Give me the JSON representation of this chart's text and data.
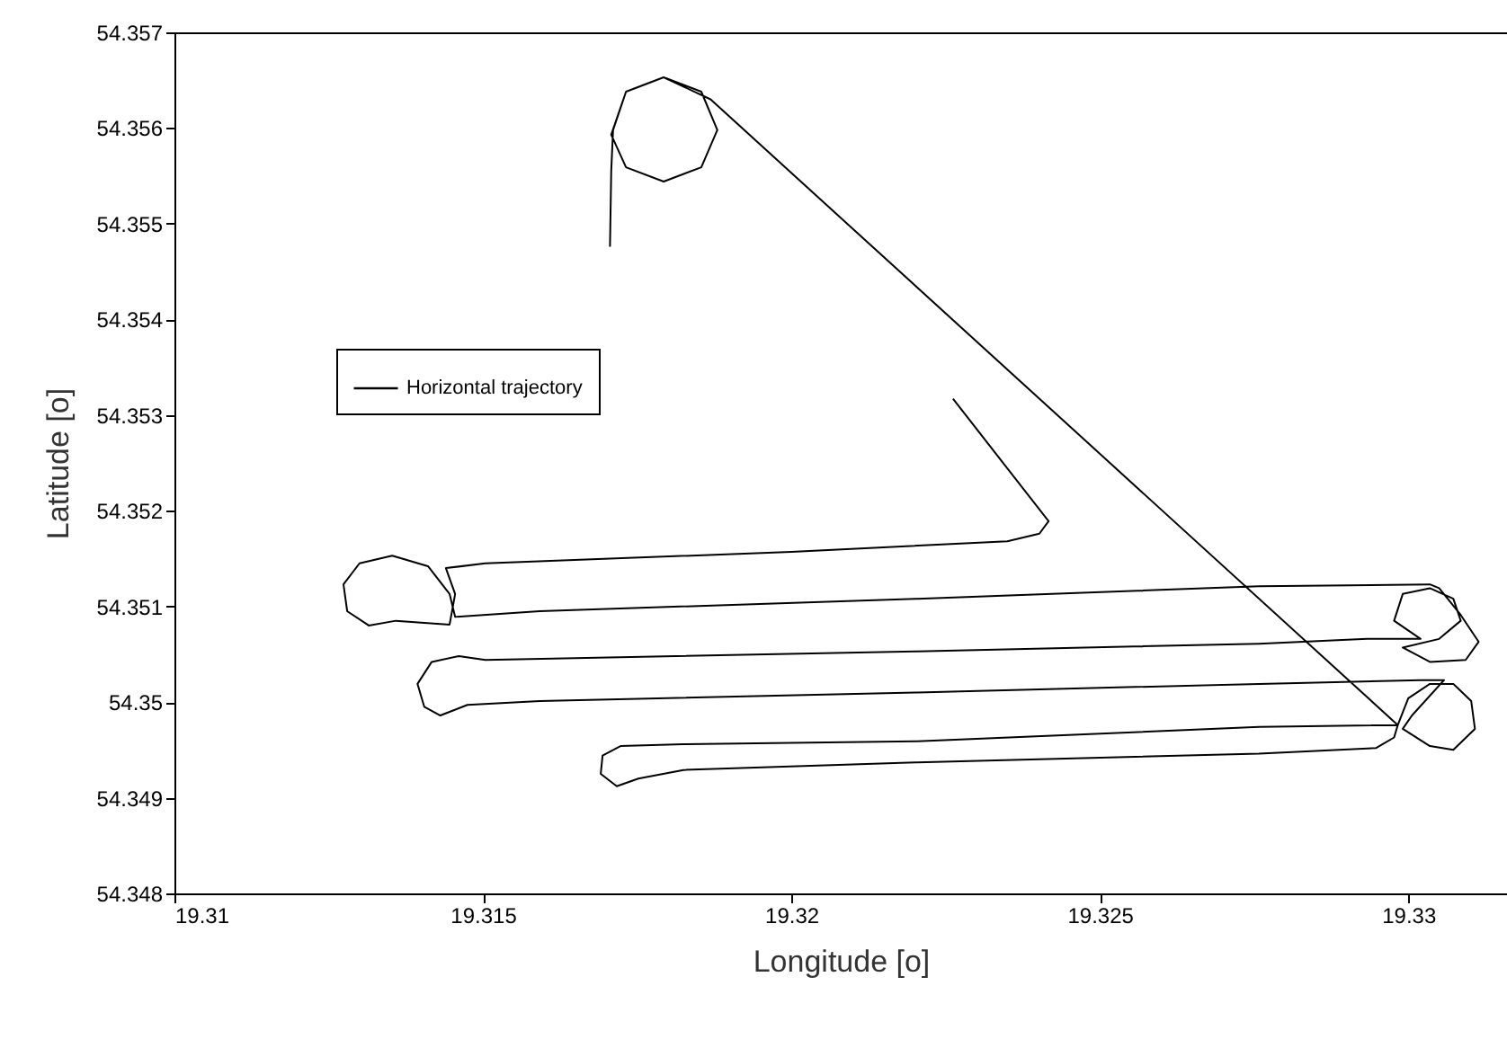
{
  "chart_data": {
    "type": "line",
    "xlabel": "Longitude [o]",
    "ylabel": "Latitude [o]",
    "xlim": [
      19.31,
      19.3316
    ],
    "ylim": [
      54.348,
      54.357
    ],
    "xticks": [
      19.31,
      19.315,
      19.32,
      19.325,
      19.33
    ],
    "yticks": [
      54.348,
      54.349,
      54.35,
      54.351,
      54.352,
      54.353,
      54.354,
      54.355,
      54.356,
      54.357
    ],
    "grid": false,
    "legend": "top left",
    "series": [
      {
        "name": "Horizontal trajectory",
        "color": "#000000",
        "x": [
          19.31706,
          19.31708,
          19.31711,
          19.31732,
          19.31793,
          19.31854,
          19.3188,
          19.31854,
          19.31793,
          19.31732,
          19.31708,
          19.31732,
          19.31793,
          19.31869,
          19.32983,
          19.32758,
          19.32204,
          19.31825,
          19.31723,
          19.31694,
          19.31691,
          19.31717,
          19.31752,
          19.31825,
          19.32204,
          19.32758,
          19.32948,
          19.32977,
          19.32983,
          19.33,
          19.33035,
          19.33073,
          19.33102,
          19.33108,
          19.33073,
          19.33035,
          19.32991,
          19.33006,
          19.33058,
          19.3302,
          19.32758,
          19.32204,
          19.31592,
          19.31475,
          19.31431,
          19.31405,
          19.31394,
          19.31417,
          19.31461,
          19.31504,
          19.32204,
          19.32758,
          19.32933,
          19.3302,
          19.32977,
          19.32991,
          19.33035,
          19.33073,
          19.33085,
          19.3305,
          19.32991,
          19.33035,
          19.33093,
          19.33114,
          19.33085,
          19.3305,
          19.33035,
          19.32758,
          19.32204,
          19.31592,
          19.31455,
          19.31446,
          19.31411,
          19.31353,
          19.313,
          19.31274,
          19.3128,
          19.31315,
          19.31359,
          19.31446,
          19.31455,
          19.3144,
          19.31504,
          19.32,
          19.3235,
          19.32402,
          19.32417,
          19.32262
        ],
        "values": [
          54.35476,
          54.35555,
          54.35598,
          54.35638,
          54.35653,
          54.35638,
          54.35598,
          54.35559,
          54.35544,
          54.35559,
          54.35593,
          54.35638,
          54.35653,
          54.3563,
          54.34976,
          54.34974,
          54.34959,
          54.34956,
          54.34954,
          54.34944,
          54.34925,
          54.34912,
          54.3492,
          54.34929,
          54.34937,
          54.34946,
          54.34952,
          54.34963,
          54.34976,
          54.35004,
          54.35019,
          54.35019,
          54.35001,
          54.34972,
          54.3495,
          54.34954,
          54.34972,
          54.34986,
          54.35023,
          54.35023,
          54.35019,
          54.3501,
          54.35001,
          54.34997,
          54.34986,
          54.34995,
          54.35019,
          54.35042,
          54.35048,
          54.35044,
          54.35053,
          54.35061,
          54.35066,
          54.35066,
          54.35085,
          54.35113,
          54.35119,
          54.35108,
          54.35085,
          54.35066,
          54.35057,
          54.35042,
          54.35044,
          54.35063,
          54.35091,
          54.35119,
          54.35123,
          54.35121,
          54.35108,
          54.35095,
          54.35089,
          54.35113,
          54.35142,
          54.35153,
          54.35145,
          54.35123,
          54.35095,
          54.3508,
          54.35085,
          54.35081,
          54.35113,
          54.3514,
          54.35145,
          54.35157,
          54.35168,
          54.35176,
          54.35189,
          54.35317
        ]
      }
    ]
  }
}
